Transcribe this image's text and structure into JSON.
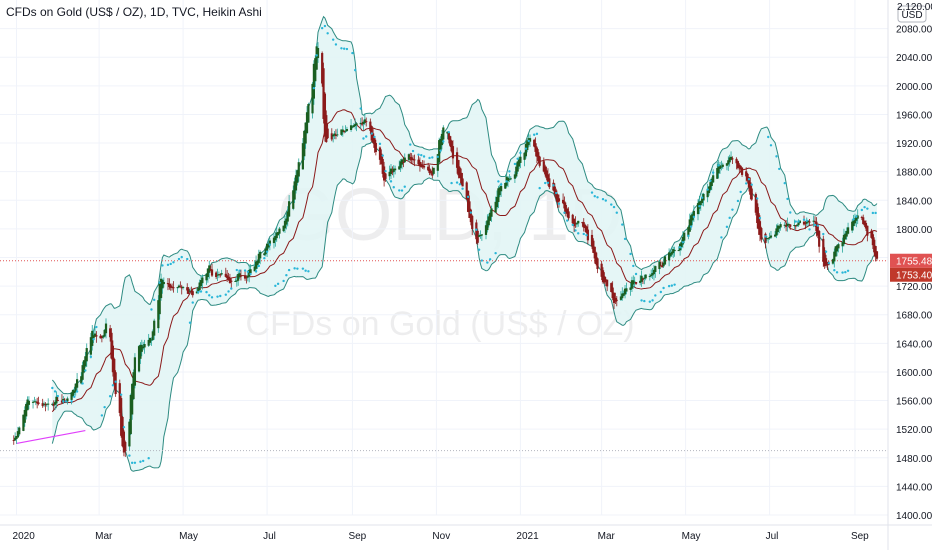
{
  "header": {
    "title": "CFDs on Gold (US$ / OZ), 1D, TVC, Heikin Ashi",
    "currency_badge": "USD",
    "top_tick_partial": "2,120.00"
  },
  "watermark": {
    "symbol": "GOLD, 1D",
    "description": "CFDs on Gold (US$ / OZ)"
  },
  "colors": {
    "up": "#26a69a",
    "up_body": "#1b5e20",
    "down": "#8b1a1a",
    "band_line": "#2e8b82",
    "band_fill": "#e0f5f4",
    "basis": "#8b1a1a",
    "psar": "#29b6d8",
    "trendline": "#e040fb",
    "price_badge": "#e05252"
  },
  "chart_data": {
    "type": "candlestick",
    "x_ticks": [
      {
        "label": "2020",
        "date": "2020-01-01"
      },
      {
        "label": "Mar",
        "date": "2020-03-01"
      },
      {
        "label": "May",
        "date": "2020-05-01"
      },
      {
        "label": "Jul",
        "date": "2020-07-01"
      },
      {
        "label": "Sep",
        "date": "2020-09-01"
      },
      {
        "label": "Nov",
        "date": "2020-11-01"
      },
      {
        "label": "2021",
        "date": "2021-01-01"
      },
      {
        "label": "Mar",
        "date": "2021-03-01"
      },
      {
        "label": "May",
        "date": "2021-05-01"
      },
      {
        "label": "Jul",
        "date": "2021-07-01"
      },
      {
        "label": "Sep",
        "date": "2021-09-01"
      }
    ],
    "y_ticks": [
      1400,
      1440,
      1480,
      1520,
      1560,
      1600,
      1640,
      1680,
      1720,
      1760,
      1800,
      1840,
      1880,
      1920,
      1960,
      2000,
      2040,
      2080
    ],
    "y_tick_labels": [
      "1400.00",
      "1440.00",
      "1480.00",
      "1520.00",
      "1560.00",
      "1600.00",
      "1640.00",
      "1680.00",
      "1720.00",
      "1760.00",
      "1800.00",
      "1840.00",
      "1880.00",
      "1920.00",
      "1960.00",
      "2000.00",
      "2040.00",
      "2080.00"
    ],
    "ylim": [
      1400,
      2120
    ],
    "xlim": [
      "2019-12-20",
      "2021-09-25"
    ],
    "current_price": {
      "value": 1755.48,
      "label": "1755.48"
    },
    "second_price": {
      "value": 1753.4,
      "label": "1753.40"
    },
    "horizontal_levels": [
      1490
    ],
    "trendline": {
      "points": [
        [
          "2020-01-01",
          1500
        ],
        [
          "2020-02-20",
          1518
        ]
      ]
    },
    "price_path": [
      [
        "2019-12-30",
        1505
      ],
      [
        "2020-01-08",
        1560
      ],
      [
        "2020-01-20",
        1555
      ],
      [
        "2020-02-05",
        1560
      ],
      [
        "2020-02-15",
        1590
      ],
      [
        "2020-02-24",
        1660
      ],
      [
        "2020-03-02",
        1640
      ],
      [
        "2020-03-06",
        1670
      ],
      [
        "2020-03-12",
        1580
      ],
      [
        "2020-03-19",
        1480
      ],
      [
        "2020-03-27",
        1630
      ],
      [
        "2020-04-08",
        1650
      ],
      [
        "2020-04-14",
        1725
      ],
      [
        "2020-04-25",
        1720
      ],
      [
        "2020-05-10",
        1710
      ],
      [
        "2020-05-18",
        1745
      ],
      [
        "2020-06-01",
        1730
      ],
      [
        "2020-06-15",
        1735
      ],
      [
        "2020-06-30",
        1780
      ],
      [
        "2020-07-14",
        1810
      ],
      [
        "2020-07-24",
        1900
      ],
      [
        "2020-08-06",
        2060
      ],
      [
        "2020-08-12",
        1920
      ],
      [
        "2020-08-24",
        1935
      ],
      [
        "2020-09-10",
        1950
      ],
      [
        "2020-09-24",
        1870
      ],
      [
        "2020-10-10",
        1905
      ],
      [
        "2020-10-28",
        1875
      ],
      [
        "2020-11-06",
        1950
      ],
      [
        "2020-11-18",
        1865
      ],
      [
        "2020-11-30",
        1780
      ],
      [
        "2020-12-15",
        1850
      ],
      [
        "2020-12-31",
        1895
      ],
      [
        "2021-01-06",
        1930
      ],
      [
        "2021-01-20",
        1865
      ],
      [
        "2021-02-05",
        1815
      ],
      [
        "2021-02-16",
        1800
      ],
      [
        "2021-03-01",
        1730
      ],
      [
        "2021-03-10",
        1700
      ],
      [
        "2021-03-25",
        1730
      ],
      [
        "2021-04-10",
        1745
      ],
      [
        "2021-04-25",
        1775
      ],
      [
        "2021-05-10",
        1840
      ],
      [
        "2021-05-25",
        1890
      ],
      [
        "2021-06-03",
        1905
      ],
      [
        "2021-06-15",
        1860
      ],
      [
        "2021-06-25",
        1780
      ],
      [
        "2021-07-08",
        1805
      ],
      [
        "2021-07-20",
        1810
      ],
      [
        "2021-08-02",
        1812
      ],
      [
        "2021-08-09",
        1740
      ],
      [
        "2021-08-20",
        1780
      ],
      [
        "2021-09-03",
        1825
      ],
      [
        "2021-09-10",
        1795
      ],
      [
        "2021-09-17",
        1755
      ]
    ],
    "indicators": [
      "Bollinger Bands",
      "Parabolic SAR",
      "Moving Average"
    ]
  }
}
